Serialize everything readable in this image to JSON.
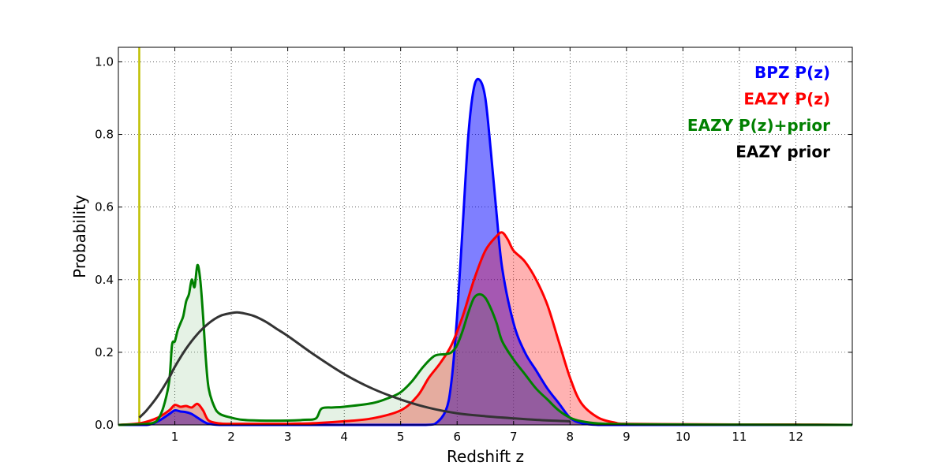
{
  "chart_data": {
    "type": "area",
    "xlabel": "Redshift z",
    "ylabel": "Probability",
    "xlim": [
      0,
      13
    ],
    "ylim": [
      0,
      1.04
    ],
    "x_ticks": [
      1,
      2,
      3,
      4,
      5,
      6,
      7,
      8,
      9,
      10,
      11,
      12
    ],
    "y_ticks": [
      0.0,
      0.2,
      0.4,
      0.6,
      0.8,
      1.0
    ],
    "y_tick_labels": [
      "0.0",
      "0.2",
      "0.4",
      "0.6",
      "0.8",
      "1.0"
    ],
    "grid": true,
    "legend_position": "top-right",
    "reference_line": {
      "x": 0.37,
      "color": "#bfbf00"
    },
    "series": [
      {
        "name": "BPZ P(z)",
        "color": "#0000ff",
        "fill": "#0000ff",
        "fill_opacity": 0.5,
        "x": [
          0,
          0.5,
          0.7,
          0.9,
          1.0,
          1.1,
          1.2,
          1.3,
          1.4,
          1.5,
          1.6,
          1.8,
          2.0,
          3.0,
          4.0,
          5.0,
          5.4,
          5.6,
          5.8,
          5.9,
          6.0,
          6.1,
          6.2,
          6.3,
          6.4,
          6.5,
          6.6,
          6.7,
          6.8,
          7.0,
          7.2,
          7.4,
          7.6,
          7.8,
          8.0,
          8.2,
          8.5,
          9.0,
          13.0
        ],
        "values": [
          0,
          0,
          0.01,
          0.03,
          0.04,
          0.037,
          0.035,
          0.03,
          0.02,
          0.01,
          0.003,
          0,
          0,
          0,
          0,
          0,
          0,
          0.002,
          0.04,
          0.12,
          0.3,
          0.55,
          0.8,
          0.93,
          0.95,
          0.9,
          0.75,
          0.58,
          0.43,
          0.28,
          0.2,
          0.15,
          0.1,
          0.06,
          0.02,
          0.005,
          0,
          0,
          0
        ]
      },
      {
        "name": "EAZY P(z)",
        "color": "#ff0000",
        "fill": "#ff0000",
        "fill_opacity": 0.3,
        "x": [
          0,
          0.4,
          0.7,
          0.9,
          1.0,
          1.1,
          1.2,
          1.3,
          1.4,
          1.5,
          1.6,
          1.8,
          2.0,
          2.5,
          3.0,
          3.5,
          4.0,
          4.5,
          5.0,
          5.3,
          5.5,
          5.7,
          5.9,
          6.1,
          6.3,
          6.5,
          6.7,
          6.8,
          6.9,
          7.0,
          7.2,
          7.4,
          7.6,
          7.8,
          8.0,
          8.2,
          8.5,
          8.8,
          9.0,
          10.0,
          11.0,
          12.0,
          13.0
        ],
        "values": [
          0,
          0.005,
          0.02,
          0.04,
          0.055,
          0.05,
          0.052,
          0.048,
          0.058,
          0.04,
          0.012,
          0.004,
          0.003,
          0.003,
          0.003,
          0.005,
          0.01,
          0.018,
          0.04,
          0.08,
          0.13,
          0.17,
          0.22,
          0.3,
          0.4,
          0.48,
          0.52,
          0.53,
          0.51,
          0.48,
          0.45,
          0.4,
          0.33,
          0.23,
          0.13,
          0.06,
          0.02,
          0.006,
          0.003,
          0.002,
          0.001,
          0.001,
          0
        ]
      },
      {
        "name": "EAZY P(z)+prior",
        "color": "#008000",
        "fill": "#008000",
        "fill_opacity": 0.1,
        "x": [
          0,
          0.4,
          0.6,
          0.7,
          0.8,
          0.9,
          0.95,
          1.0,
          1.05,
          1.1,
          1.15,
          1.2,
          1.25,
          1.3,
          1.35,
          1.4,
          1.45,
          1.5,
          1.55,
          1.6,
          1.7,
          1.8,
          2.0,
          2.2,
          2.5,
          3.0,
          3.3,
          3.5,
          3.6,
          3.8,
          4.0,
          4.5,
          4.8,
          5.0,
          5.2,
          5.4,
          5.6,
          5.8,
          5.9,
          6.0,
          6.1,
          6.2,
          6.3,
          6.4,
          6.5,
          6.6,
          6.7,
          6.8,
          7.0,
          7.2,
          7.4,
          7.6,
          7.8,
          8.0,
          8.2,
          8.5,
          9.0,
          10.0,
          13.0
        ],
        "values": [
          0,
          0.002,
          0.005,
          0.015,
          0.05,
          0.12,
          0.22,
          0.23,
          0.26,
          0.28,
          0.3,
          0.34,
          0.36,
          0.4,
          0.38,
          0.44,
          0.4,
          0.3,
          0.18,
          0.1,
          0.05,
          0.03,
          0.02,
          0.014,
          0.012,
          0.012,
          0.014,
          0.018,
          0.045,
          0.048,
          0.05,
          0.06,
          0.075,
          0.09,
          0.12,
          0.16,
          0.19,
          0.195,
          0.2,
          0.22,
          0.26,
          0.31,
          0.35,
          0.36,
          0.35,
          0.32,
          0.28,
          0.23,
          0.18,
          0.14,
          0.1,
          0.07,
          0.04,
          0.02,
          0.01,
          0.004,
          0.002,
          0.001,
          0
        ]
      },
      {
        "name": "EAZY prior",
        "color": "#333333",
        "fill": "none",
        "fill_opacity": 0,
        "x": [
          0.37,
          0.5,
          0.7,
          0.9,
          1.0,
          1.2,
          1.4,
          1.6,
          1.8,
          2.0,
          2.1,
          2.2,
          2.4,
          2.6,
          2.8,
          3.0,
          3.5,
          4.0,
          4.5,
          5.0,
          5.5,
          6.0,
          6.5,
          7.0,
          7.5,
          8.0
        ],
        "values": [
          0.02,
          0.04,
          0.08,
          0.13,
          0.16,
          0.21,
          0.25,
          0.28,
          0.3,
          0.308,
          0.31,
          0.308,
          0.3,
          0.285,
          0.265,
          0.245,
          0.19,
          0.14,
          0.1,
          0.07,
          0.047,
          0.032,
          0.024,
          0.018,
          0.013,
          0.01
        ]
      }
    ]
  }
}
